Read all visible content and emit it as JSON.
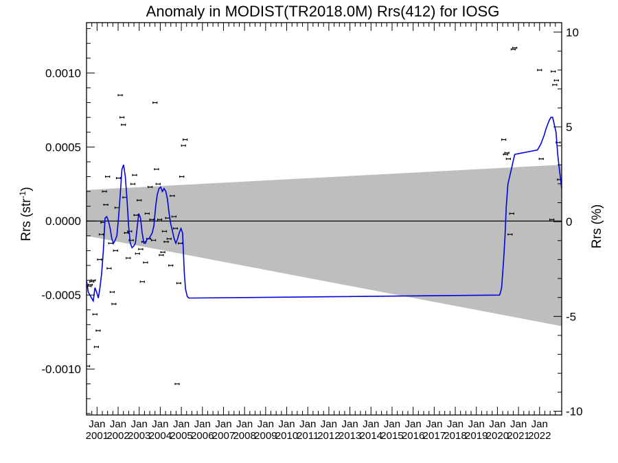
{
  "chart_data": {
    "type": "line",
    "title": "Anomaly in MODIST(TR2018.0M) Rrs(412) for IOSG",
    "ylabel_left_main": "Rrs (str",
    "ylabel_left_sup": "-1",
    "ylabel_left_end": ")",
    "ylabel_right": "Rrs (%)",
    "ylim_left": [
      -0.00131,
      0.00134
    ],
    "ylim_right": [
      -10.2,
      10.5
    ],
    "xlim": [
      2000.5,
      2023.05
    ],
    "left_ticks": [
      "-0.0010",
      "-0.0005",
      "0.0000",
      "0.0005",
      "0.0010"
    ],
    "left_tick_values": [
      -0.001,
      -0.0005,
      0.0,
      0.0005,
      0.001
    ],
    "right_ticks": [
      "-10",
      "-5",
      "0",
      "5",
      "10"
    ],
    "right_tick_values": [
      -10,
      -5,
      0,
      5,
      10
    ],
    "x_tick_month": "Jan",
    "x_tick_years": [
      "2001",
      "2002",
      "2003",
      "2004",
      "2005",
      "2006",
      "2007",
      "2008",
      "2009",
      "2010",
      "2011",
      "2012",
      "2013",
      "2014",
      "2015",
      "2016",
      "2017",
      "2018",
      "2019",
      "2020",
      "2021",
      "2022"
    ],
    "x_tick_values": [
      2001,
      2002,
      2003,
      2004,
      2005,
      2006,
      2007,
      2008,
      2009,
      2010,
      2011,
      2012,
      2013,
      2014,
      2015,
      2016,
      2017,
      2018,
      2019,
      2020,
      2021,
      2022
    ],
    "series": [
      {
        "kind": "points",
        "color": "#000000",
        "x": [
          2000.55,
          2000.62,
          2000.68,
          2000.75,
          2000.82,
          2000.9,
          2000.97,
          2001.05,
          2001.12,
          2001.2,
          2001.28,
          2001.35,
          2001.42,
          2001.5,
          2001.57,
          2001.65,
          2001.72,
          2001.8,
          2001.88,
          2001.95,
          2002.02,
          2002.1,
          2002.18,
          2002.25,
          2002.32,
          2002.4,
          2002.48,
          2002.55,
          2002.62,
          2002.7,
          2002.78,
          2002.85,
          2002.92,
          2003.0,
          2003.07,
          2003.15,
          2003.22,
          2003.3,
          2003.38,
          2003.45,
          2003.52,
          2003.6,
          2003.68,
          2003.75,
          2003.82,
          2003.9,
          2003.97,
          2004.05,
          2004.12,
          2004.2,
          2004.28,
          2004.35,
          2004.42,
          2004.5,
          2004.57,
          2004.65,
          2004.72,
          2004.8,
          2004.88,
          2004.95,
          2005.02,
          2005.1,
          2005.18,
          2020.3,
          2020.38,
          2020.45,
          2020.52,
          2020.6,
          2020.68,
          2020.75,
          2020.82,
          2022.0,
          2022.08,
          2022.58,
          2022.65,
          2022.72,
          2022.8,
          2022.88,
          2022.95
        ],
        "y": [
          -0.00098,
          -0.00044,
          -0.00043,
          -0.00041,
          -0.0004,
          -0.00063,
          -0.00085,
          -0.00074,
          -0.00026,
          -9e-05,
          -1e-05,
          0.0002,
          0.00011,
          0.0003,
          -0.00032,
          -0.00015,
          -0.00048,
          -0.00056,
          -0.0002,
          9e-05,
          0.00029,
          0.00085,
          0.0007,
          0.00065,
          0.00016,
          -8e-05,
          -0.00025,
          -7e-05,
          -0.00013,
          0.00025,
          0.00031,
          4e-05,
          -0.00022,
          0.00014,
          -0.00019,
          -0.00041,
          -0.00014,
          -0.00028,
          5e-05,
          -0.00012,
          0.00023,
          1e-05,
          -0.00013,
          0.0008,
          0.00035,
          0.00025,
          1e-05,
          -0.00023,
          -0.00021,
          -7e-05,
          -0.00014,
          2e-05,
          -0.00012,
          -0.0003,
          0.00017,
          3e-05,
          -5e-05,
          -0.0011,
          -0.00042,
          -0.00015,
          0.0003,
          0.00051,
          0.00055,
          0.00055,
          0.00045,
          0.00046,
          0.00042,
          -9e-05,
          5e-05,
          0.00116,
          0.00117,
          0.00102,
          0.00042,
          1e-05,
          0.00101,
          0.00092,
          0.00095,
          0.00053,
          0.00028
        ]
      },
      {
        "kind": "line",
        "color": "#0000e0",
        "x": [
          2000.5,
          2000.58,
          2000.66,
          2000.74,
          2000.82,
          2000.9,
          2000.98,
          2001.06,
          2001.14,
          2001.22,
          2001.3,
          2001.38,
          2001.46,
          2001.54,
          2001.62,
          2001.7,
          2001.78,
          2001.86,
          2001.94,
          2002.02,
          2002.1,
          2002.18,
          2002.26,
          2002.34,
          2002.42,
          2002.5,
          2002.58,
          2002.66,
          2002.74,
          2002.82,
          2002.9,
          2002.98,
          2003.06,
          2003.14,
          2003.22,
          2003.3,
          2003.38,
          2003.46,
          2003.54,
          2003.62,
          2003.7,
          2003.78,
          2003.86,
          2003.94,
          2004.02,
          2004.1,
          2004.18,
          2004.26,
          2004.34,
          2004.42,
          2004.5,
          2004.58,
          2004.66,
          2004.74,
          2004.82,
          2004.9,
          2004.98,
          2005.06,
          2005.14,
          2005.2,
          2005.28,
          2005.36,
          2005.44,
          2005.52,
          2020.1,
          2020.15,
          2020.2,
          2020.25,
          2020.3,
          2020.36,
          2020.42,
          2020.5,
          2020.58,
          2020.66,
          2020.74,
          2020.82,
          2021.9,
          2021.98,
          2022.06,
          2022.14,
          2022.22,
          2022.3,
          2022.38,
          2022.46,
          2022.54,
          2022.62,
          2022.7,
          2022.78,
          2022.86,
          2022.94,
          2023.0,
          2023.05
        ],
        "y": [
          -0.0004,
          -0.00048,
          -0.0005,
          -0.00052,
          -0.00054,
          -0.00045,
          -0.00048,
          -0.00052,
          -0.00045,
          -0.00035,
          -0.0002,
          2e-05,
          3e-05,
          0.0,
          -5e-05,
          -0.00012,
          -0.00015,
          -0.00013,
          -0.0001,
          2e-05,
          0.00018,
          0.00035,
          0.00038,
          0.0003,
          0.00015,
          -4e-05,
          -0.00015,
          -0.00018,
          -0.00017,
          -0.00015,
          -5e-05,
          5e-05,
          2e-05,
          -8e-05,
          -0.00015,
          -0.00015,
          -0.00012,
          -0.00012,
          -0.0001,
          -8e-05,
          -3e-05,
          0.0001,
          0.00018,
          0.00022,
          0.00023,
          0.0002,
          0.00022,
          0.0002,
          0.00015,
          5e-05,
          -2e-05,
          -7e-05,
          -0.00012,
          -0.00015,
          -0.00012,
          -8e-05,
          -5e-05,
          -8e-05,
          -0.00035,
          -0.00046,
          -0.00051,
          -0.00052,
          -0.00052,
          -0.00052,
          -0.0005,
          -0.00048,
          -0.00045,
          -0.00035,
          -0.00025,
          -0.0001,
          0.0001,
          0.00025,
          0.0003,
          0.00035,
          0.0004,
          0.00045,
          0.00048,
          0.0005,
          0.00052,
          0.00055,
          0.00058,
          0.00062,
          0.00065,
          0.00068,
          0.0007,
          0.0007,
          0.00065,
          0.0006,
          0.00045,
          0.00035,
          0.00028,
          0.00022
        ]
      }
    ],
    "band": {
      "color": "#bebebe",
      "x": [
        2000.5,
        2023.05
      ],
      "upper": [
        0.00021,
        0.00038
      ],
      "lower": [
        -0.0001,
        -0.00071
      ]
    },
    "zero_line": true
  }
}
